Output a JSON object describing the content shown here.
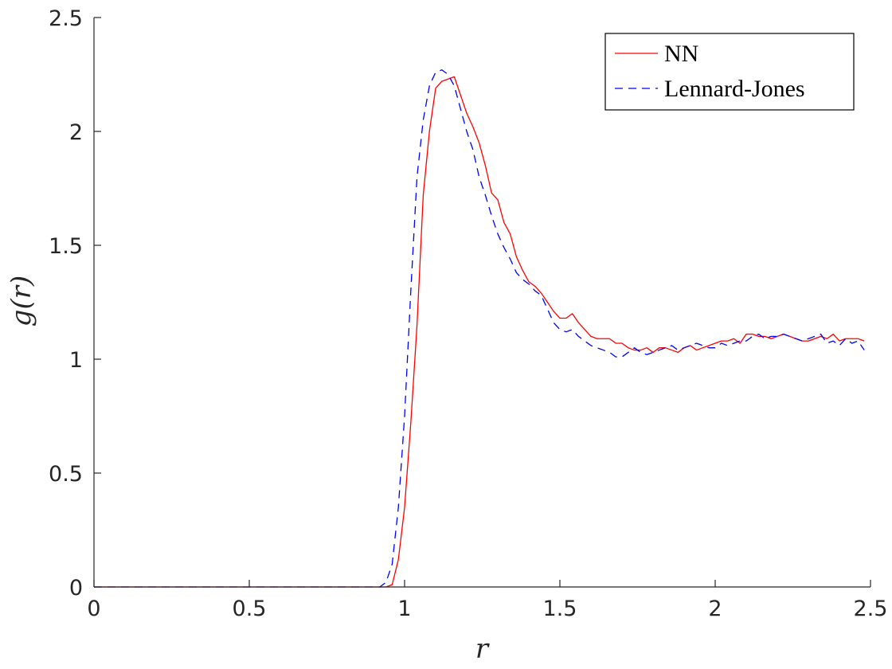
{
  "chart_data": {
    "type": "line",
    "xlabel": "r",
    "ylabel": "g(r)",
    "xlim": [
      0,
      2.5
    ],
    "ylim": [
      0,
      2.5
    ],
    "xticks": [
      0,
      0.5,
      1,
      1.5,
      2,
      2.5
    ],
    "yticks": [
      0,
      0.5,
      1,
      1.5,
      2,
      2.5
    ],
    "xtick_labels": [
      "0",
      "0.5",
      "1",
      "1.5",
      "2",
      "2.5"
    ],
    "ytick_labels": [
      "0",
      "0.5",
      "1",
      "1.5",
      "2",
      "2.5"
    ],
    "grid": false,
    "legend_position": "top-right",
    "series": [
      {
        "name": "NN",
        "color": "#ff0000",
        "dash": "solid",
        "x": [
          0,
          0.9,
          0.92,
          0.94,
          0.96,
          0.98,
          1.0,
          1.02,
          1.04,
          1.06,
          1.08,
          1.1,
          1.12,
          1.14,
          1.16,
          1.18,
          1.2,
          1.22,
          1.24,
          1.26,
          1.28,
          1.3,
          1.32,
          1.34,
          1.36,
          1.38,
          1.4,
          1.42,
          1.44,
          1.46,
          1.48,
          1.5,
          1.52,
          1.54,
          1.56,
          1.58,
          1.6,
          1.62,
          1.64,
          1.66,
          1.68,
          1.7,
          1.72,
          1.74,
          1.76,
          1.78,
          1.8,
          1.82,
          1.84,
          1.86,
          1.88,
          1.9,
          1.92,
          1.94,
          1.96,
          1.98,
          2.0,
          2.02,
          2.04,
          2.06,
          2.08,
          2.1,
          2.12,
          2.14,
          2.16,
          2.18,
          2.2,
          2.22,
          2.24,
          2.26,
          2.28,
          2.3,
          2.32,
          2.34,
          2.36,
          2.38,
          2.4,
          2.42,
          2.44,
          2.46,
          2.48
        ],
        "y": [
          0,
          0,
          0,
          0,
          0.01,
          0.12,
          0.35,
          0.72,
          1.15,
          1.72,
          2.0,
          2.19,
          2.22,
          2.23,
          2.24,
          2.16,
          2.08,
          2.02,
          1.95,
          1.85,
          1.73,
          1.7,
          1.6,
          1.55,
          1.45,
          1.39,
          1.34,
          1.32,
          1.29,
          1.25,
          1.21,
          1.18,
          1.18,
          1.2,
          1.16,
          1.13,
          1.1,
          1.09,
          1.09,
          1.09,
          1.07,
          1.07,
          1.05,
          1.04,
          1.04,
          1.05,
          1.03,
          1.05,
          1.05,
          1.04,
          1.03,
          1.05,
          1.06,
          1.04,
          1.05,
          1.06,
          1.07,
          1.08,
          1.08,
          1.09,
          1.07,
          1.11,
          1.11,
          1.1,
          1.1,
          1.09,
          1.1,
          1.11,
          1.1,
          1.09,
          1.08,
          1.08,
          1.09,
          1.1,
          1.09,
          1.11,
          1.08,
          1.09,
          1.09,
          1.09,
          1.08
        ]
      },
      {
        "name": "Lennard-Jones",
        "color": "#0000ff",
        "dash": "dashed",
        "x": [
          0,
          0.9,
          0.92,
          0.94,
          0.96,
          0.98,
          1.0,
          1.02,
          1.04,
          1.06,
          1.08,
          1.1,
          1.12,
          1.14,
          1.16,
          1.18,
          1.2,
          1.22,
          1.24,
          1.26,
          1.28,
          1.3,
          1.32,
          1.34,
          1.36,
          1.38,
          1.4,
          1.42,
          1.44,
          1.46,
          1.48,
          1.5,
          1.52,
          1.54,
          1.56,
          1.58,
          1.6,
          1.62,
          1.64,
          1.66,
          1.68,
          1.7,
          1.72,
          1.74,
          1.76,
          1.78,
          1.8,
          1.82,
          1.84,
          1.86,
          1.88,
          1.9,
          1.92,
          1.94,
          1.96,
          1.98,
          2.0,
          2.02,
          2.04,
          2.06,
          2.08,
          2.1,
          2.12,
          2.14,
          2.16,
          2.18,
          2.2,
          2.22,
          2.24,
          2.26,
          2.28,
          2.3,
          2.32,
          2.34,
          2.36,
          2.38,
          2.4,
          2.42,
          2.44,
          2.46,
          2.48
        ],
        "y": [
          0,
          0,
          0,
          0.02,
          0.1,
          0.35,
          0.75,
          1.3,
          1.8,
          2.05,
          2.2,
          2.26,
          2.27,
          2.25,
          2.2,
          2.1,
          2.0,
          1.92,
          1.8,
          1.72,
          1.63,
          1.55,
          1.49,
          1.44,
          1.38,
          1.35,
          1.33,
          1.3,
          1.28,
          1.22,
          1.16,
          1.13,
          1.12,
          1.13,
          1.1,
          1.08,
          1.06,
          1.05,
          1.04,
          1.03,
          1.01,
          1.01,
          1.03,
          1.05,
          1.03,
          1.02,
          1.03,
          1.04,
          1.05,
          1.06,
          1.04,
          1.05,
          1.06,
          1.07,
          1.06,
          1.05,
          1.05,
          1.07,
          1.06,
          1.07,
          1.08,
          1.08,
          1.1,
          1.11,
          1.09,
          1.1,
          1.1,
          1.11,
          1.1,
          1.09,
          1.08,
          1.09,
          1.1,
          1.11,
          1.07,
          1.08,
          1.06,
          1.09,
          1.07,
          1.08,
          1.04
        ]
      }
    ]
  }
}
